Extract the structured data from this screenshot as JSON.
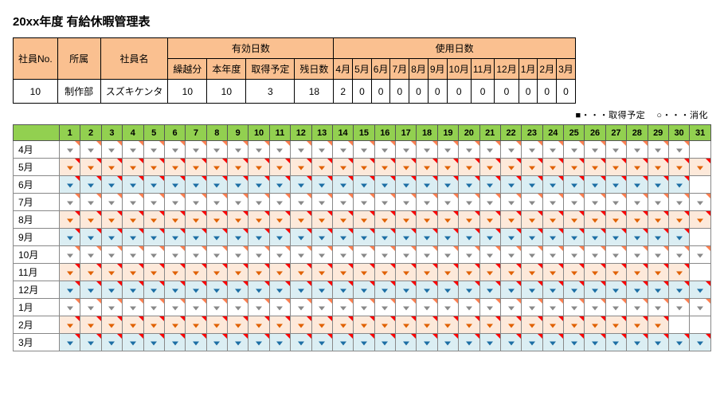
{
  "title": "20xx年度 有給休暇管理表",
  "summary": {
    "headers": {
      "emp_no": "社員No.",
      "dept": "所属",
      "name": "社員名",
      "valid_days": "有効日数",
      "used_days": "使用日数",
      "carry": "繰越分",
      "this_year": "本年度",
      "planned": "取得予定",
      "remain": "残日数"
    },
    "months": [
      "4月",
      "5月",
      "6月",
      "7月",
      "8月",
      "9月",
      "10月",
      "11月",
      "12月",
      "1月",
      "2月",
      "3月"
    ],
    "row": {
      "emp_no": "10",
      "dept": "制作部",
      "name": "スズキケンタ",
      "carry": "10",
      "this_year": "10",
      "planned": "3",
      "remain": "18",
      "used": [
        "2",
        "0",
        "0",
        "0",
        "0",
        "0",
        "0",
        "0",
        "0",
        "0",
        "0",
        "0"
      ]
    }
  },
  "legend": {
    "planned": "■・・・取得予定",
    "used": "○・・・消化"
  },
  "calendar": {
    "days_in_month_header": 31,
    "rows": [
      {
        "label": "4月",
        "scheme": "white",
        "days": 30
      },
      {
        "label": "5月",
        "scheme": "orange",
        "days": 31
      },
      {
        "label": "6月",
        "scheme": "blue",
        "days": 30
      },
      {
        "label": "7月",
        "scheme": "white",
        "days": 31
      },
      {
        "label": "8月",
        "scheme": "orange",
        "days": 31
      },
      {
        "label": "9月",
        "scheme": "blue",
        "days": 30
      },
      {
        "label": "10月",
        "scheme": "white",
        "days": 31
      },
      {
        "label": "11月",
        "scheme": "orange",
        "days": 30
      },
      {
        "label": "12月",
        "scheme": "blue",
        "days": 31
      },
      {
        "label": "1月",
        "scheme": "white",
        "days": 31
      },
      {
        "label": "2月",
        "scheme": "orange",
        "days": 29
      },
      {
        "label": "3月",
        "scheme": "blue",
        "days": 31
      }
    ],
    "colors": {
      "header_bg": "#92d050",
      "white_bg": "#ffffff",
      "orange_bg": "#fde9da",
      "blue_bg": "#dbeef3"
    }
  }
}
